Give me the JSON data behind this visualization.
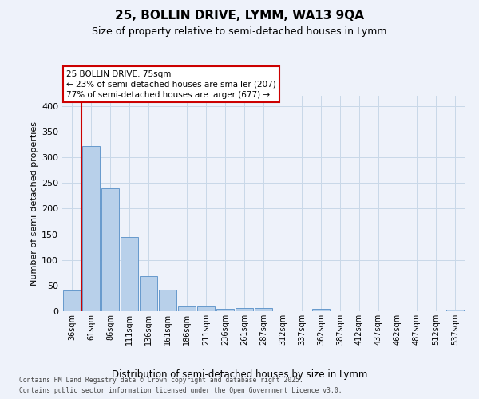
{
  "title_line1": "25, BOLLIN DRIVE, LYMM, WA13 9QA",
  "title_line2": "Size of property relative to semi-detached houses in Lymm",
  "xlabel": "Distribution of semi-detached houses by size in Lymm",
  "ylabel": "Number of semi-detached properties",
  "categories": [
    "36sqm",
    "61sqm",
    "86sqm",
    "111sqm",
    "136sqm",
    "161sqm",
    "186sqm",
    "211sqm",
    "236sqm",
    "261sqm",
    "287sqm",
    "312sqm",
    "337sqm",
    "362sqm",
    "387sqm",
    "412sqm",
    "437sqm",
    "462sqm",
    "487sqm",
    "512sqm",
    "537sqm"
  ],
  "values": [
    40,
    322,
    240,
    145,
    68,
    42,
    10,
    9,
    5,
    6,
    7,
    0,
    0,
    4,
    0,
    0,
    0,
    0,
    0,
    0,
    3
  ],
  "bar_color": "#b8d0ea",
  "bar_edge_color": "#6699cc",
  "red_line_x": 0.5,
  "highlight_color": "#cc0000",
  "annotation_title": "25 BOLLIN DRIVE: 75sqm",
  "annotation_line1": "← 23% of semi-detached houses are smaller (207)",
  "annotation_line2": "77% of semi-detached houses are larger (677) →",
  "annotation_box_color": "#cc0000",
  "background_color": "#eef2fa",
  "grid_color": "#c8d8e8",
  "ylim": [
    0,
    420
  ],
  "yticks": [
    0,
    50,
    100,
    150,
    200,
    250,
    300,
    350,
    400
  ],
  "footer_line1": "Contains HM Land Registry data © Crown copyright and database right 2025.",
  "footer_line2": "Contains public sector information licensed under the Open Government Licence v3.0."
}
